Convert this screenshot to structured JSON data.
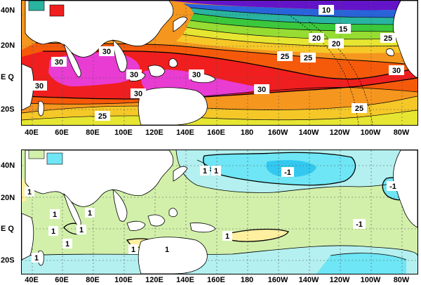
{
  "top_map": {
    "lat_labels": [
      "40N",
      "20N",
      "E Q",
      "20S"
    ],
    "lon_labels": [
      "40E",
      "60E",
      "80E",
      "100E",
      "120E",
      "140E",
      "160E",
      "180",
      "160W",
      "140W",
      "120W",
      "100W",
      "80W"
    ],
    "contour_labels": [
      "10",
      "15",
      "20",
      "20",
      "25",
      "25",
      "25",
      "25",
      "30",
      "30",
      "30",
      "30",
      "30",
      "30",
      "30",
      "30"
    ]
  },
  "bottom_map": {
    "lat_labels": [
      "40N",
      "20N",
      "E Q",
      "20S"
    ],
    "lon_labels": [
      "40E",
      "60E",
      "80E",
      "100E",
      "120E",
      "140E",
      "160E",
      "180",
      "160W",
      "140W",
      "120W",
      "100W",
      "80W"
    ],
    "contour_labels": [
      "1",
      "1",
      "1",
      "1",
      "1",
      "1",
      "1",
      "1",
      "1",
      "1",
      "1",
      "1",
      "-1",
      "-1",
      "-1"
    ]
  },
  "colors": {
    "warm_magenta": "#e83cd2",
    "red": "#f01e1e",
    "orange_red": "#f55a0a",
    "orange": "#f5961e",
    "yellow_orange": "#f5c828",
    "yellow": "#e6e632",
    "yellow_green": "#96dc32",
    "green": "#3cc83c",
    "teal": "#28b4a0",
    "blue": "#2864dc",
    "purple": "#6414c8",
    "anom_pale_green": "#d2f0aa",
    "anom_yellow": "#fff0a0",
    "anom_light_cyan": "#b4f0f0",
    "anom_cyan": "#6ee6f5",
    "anom_deep_cyan": "#32c8f0"
  }
}
